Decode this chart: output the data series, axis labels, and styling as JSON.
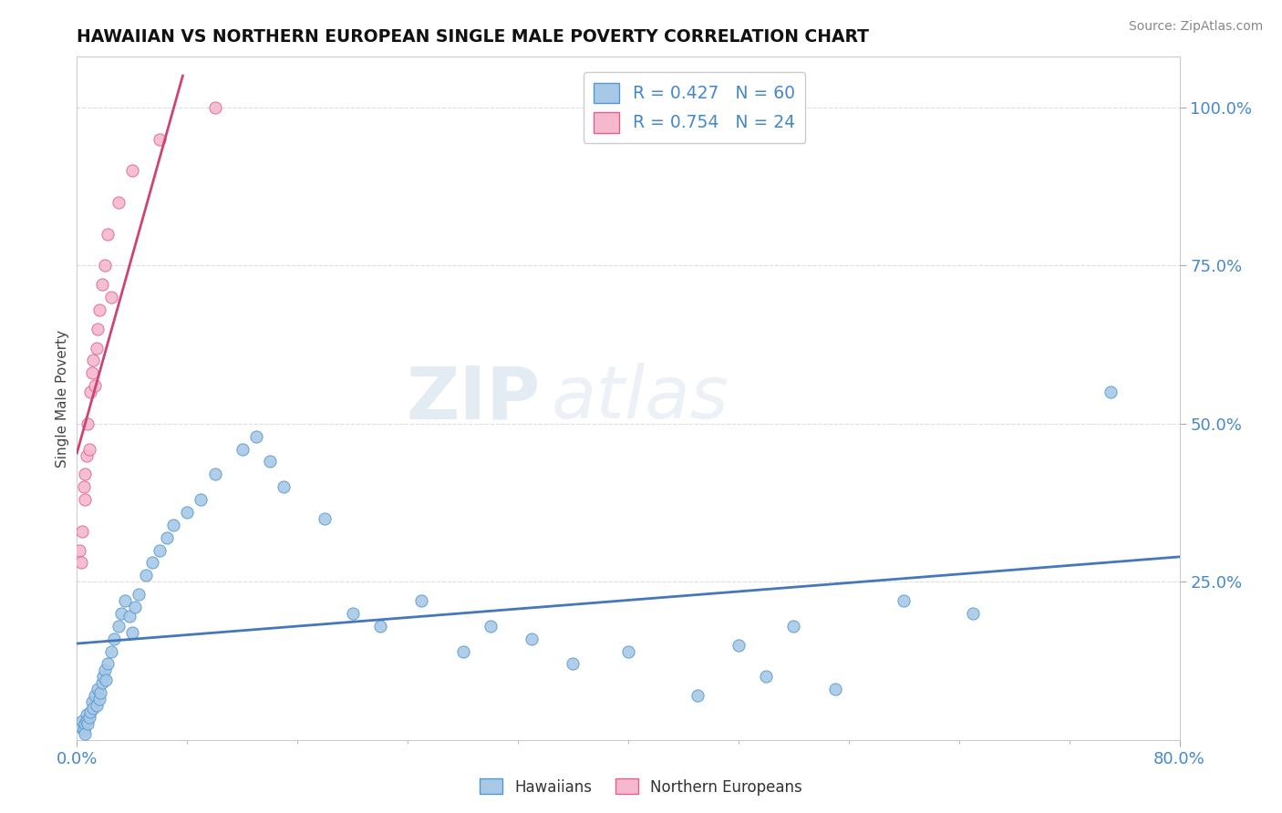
{
  "title": "HAWAIIAN VS NORTHERN EUROPEAN SINGLE MALE POVERTY CORRELATION CHART",
  "source": "Source: ZipAtlas.com",
  "ylabel": "Single Male Poverty",
  "xlim": [
    0.0,
    0.8
  ],
  "ylim": [
    0.0,
    1.08
  ],
  "xtick_positions": [
    0.0,
    0.8
  ],
  "xtick_labels": [
    "0.0%",
    "80.0%"
  ],
  "ytick_values": [
    0.25,
    0.5,
    0.75,
    1.0
  ],
  "ytick_labels": [
    "25.0%",
    "50.0%",
    "75.0%",
    "100.0%"
  ],
  "watermark_line1": "ZIP",
  "watermark_line2": "atlas",
  "legend_hawaiians": "Hawaiians",
  "legend_northern": "Northern Europeans",
  "R_hawaiian": 0.427,
  "N_hawaiian": 60,
  "R_northern": 0.754,
  "N_northern": 24,
  "hawaiian_fill": "#a8c8e8",
  "northern_fill": "#f5b8cc",
  "hawaiian_edge": "#5599cc",
  "northern_edge": "#e06090",
  "hawaiian_line": "#4477bb",
  "northern_line": "#cc4477",
  "background_color": "#ffffff",
  "grid_color": "#dddddd",
  "tick_label_color": "#4488cc",
  "title_color": "#111111",
  "source_color": "#888888",
  "ylabel_color": "#444444",
  "hawaiians_x": [
    0.003,
    0.004,
    0.005,
    0.006,
    0.006,
    0.007,
    0.007,
    0.008,
    0.009,
    0.01,
    0.011,
    0.012,
    0.013,
    0.014,
    0.015,
    0.016,
    0.017,
    0.018,
    0.019,
    0.02,
    0.021,
    0.022,
    0.025,
    0.027,
    0.03,
    0.032,
    0.035,
    0.038,
    0.04,
    0.042,
    0.045,
    0.05,
    0.055,
    0.06,
    0.065,
    0.07,
    0.08,
    0.09,
    0.1,
    0.12,
    0.13,
    0.14,
    0.15,
    0.18,
    0.2,
    0.22,
    0.25,
    0.28,
    0.3,
    0.33,
    0.36,
    0.4,
    0.45,
    0.48,
    0.5,
    0.52,
    0.55,
    0.6,
    0.65,
    0.75
  ],
  "hawaiians_y": [
    0.02,
    0.03,
    0.04,
    0.015,
    0.025,
    0.01,
    0.05,
    0.03,
    0.02,
    0.04,
    0.06,
    0.08,
    0.05,
    0.03,
    0.07,
    0.04,
    0.06,
    0.1,
    0.08,
    0.12,
    0.09,
    0.11,
    0.14,
    0.16,
    0.18,
    0.2,
    0.22,
    0.19,
    0.17,
    0.21,
    0.23,
    0.26,
    0.28,
    0.3,
    0.32,
    0.34,
    0.36,
    0.38,
    0.42,
    0.46,
    0.48,
    0.44,
    0.4,
    0.35,
    0.2,
    0.18,
    0.22,
    0.14,
    0.18,
    0.16,
    0.12,
    0.14,
    0.07,
    0.15,
    0.1,
    0.18,
    0.08,
    0.22,
    0.2,
    0.55
  ],
  "northern_x": [
    0.002,
    0.003,
    0.004,
    0.005,
    0.006,
    0.006,
    0.007,
    0.008,
    0.009,
    0.01,
    0.011,
    0.012,
    0.013,
    0.014,
    0.015,
    0.016,
    0.018,
    0.02,
    0.022,
    0.025,
    0.03,
    0.04,
    0.06,
    0.1
  ],
  "northern_y": [
    0.3,
    0.28,
    0.33,
    0.4,
    0.42,
    0.38,
    0.45,
    0.5,
    0.46,
    0.55,
    0.58,
    0.6,
    0.56,
    0.62,
    0.65,
    0.68,
    0.72,
    0.75,
    0.8,
    0.7,
    0.85,
    0.9,
    0.95,
    1.0
  ]
}
